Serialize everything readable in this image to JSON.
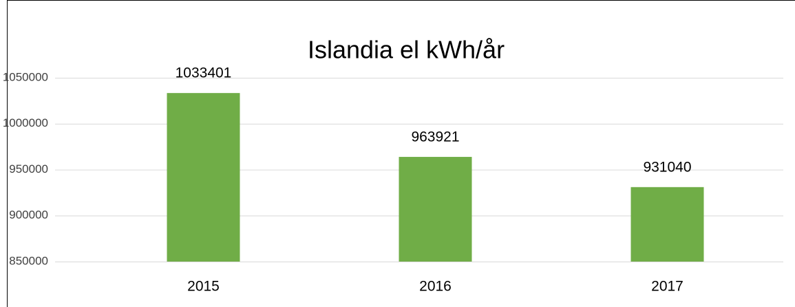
{
  "chart_data": {
    "type": "bar",
    "title": "Islandia el kWh/år",
    "categories": [
      "2015",
      "2016",
      "2017"
    ],
    "values": [
      1033401,
      963921,
      931040
    ],
    "color": "#70ad47",
    "ylim": [
      850000,
      1050000
    ],
    "yticks": [
      850000,
      900000,
      950000,
      1000000,
      1050000
    ],
    "grid": true
  }
}
